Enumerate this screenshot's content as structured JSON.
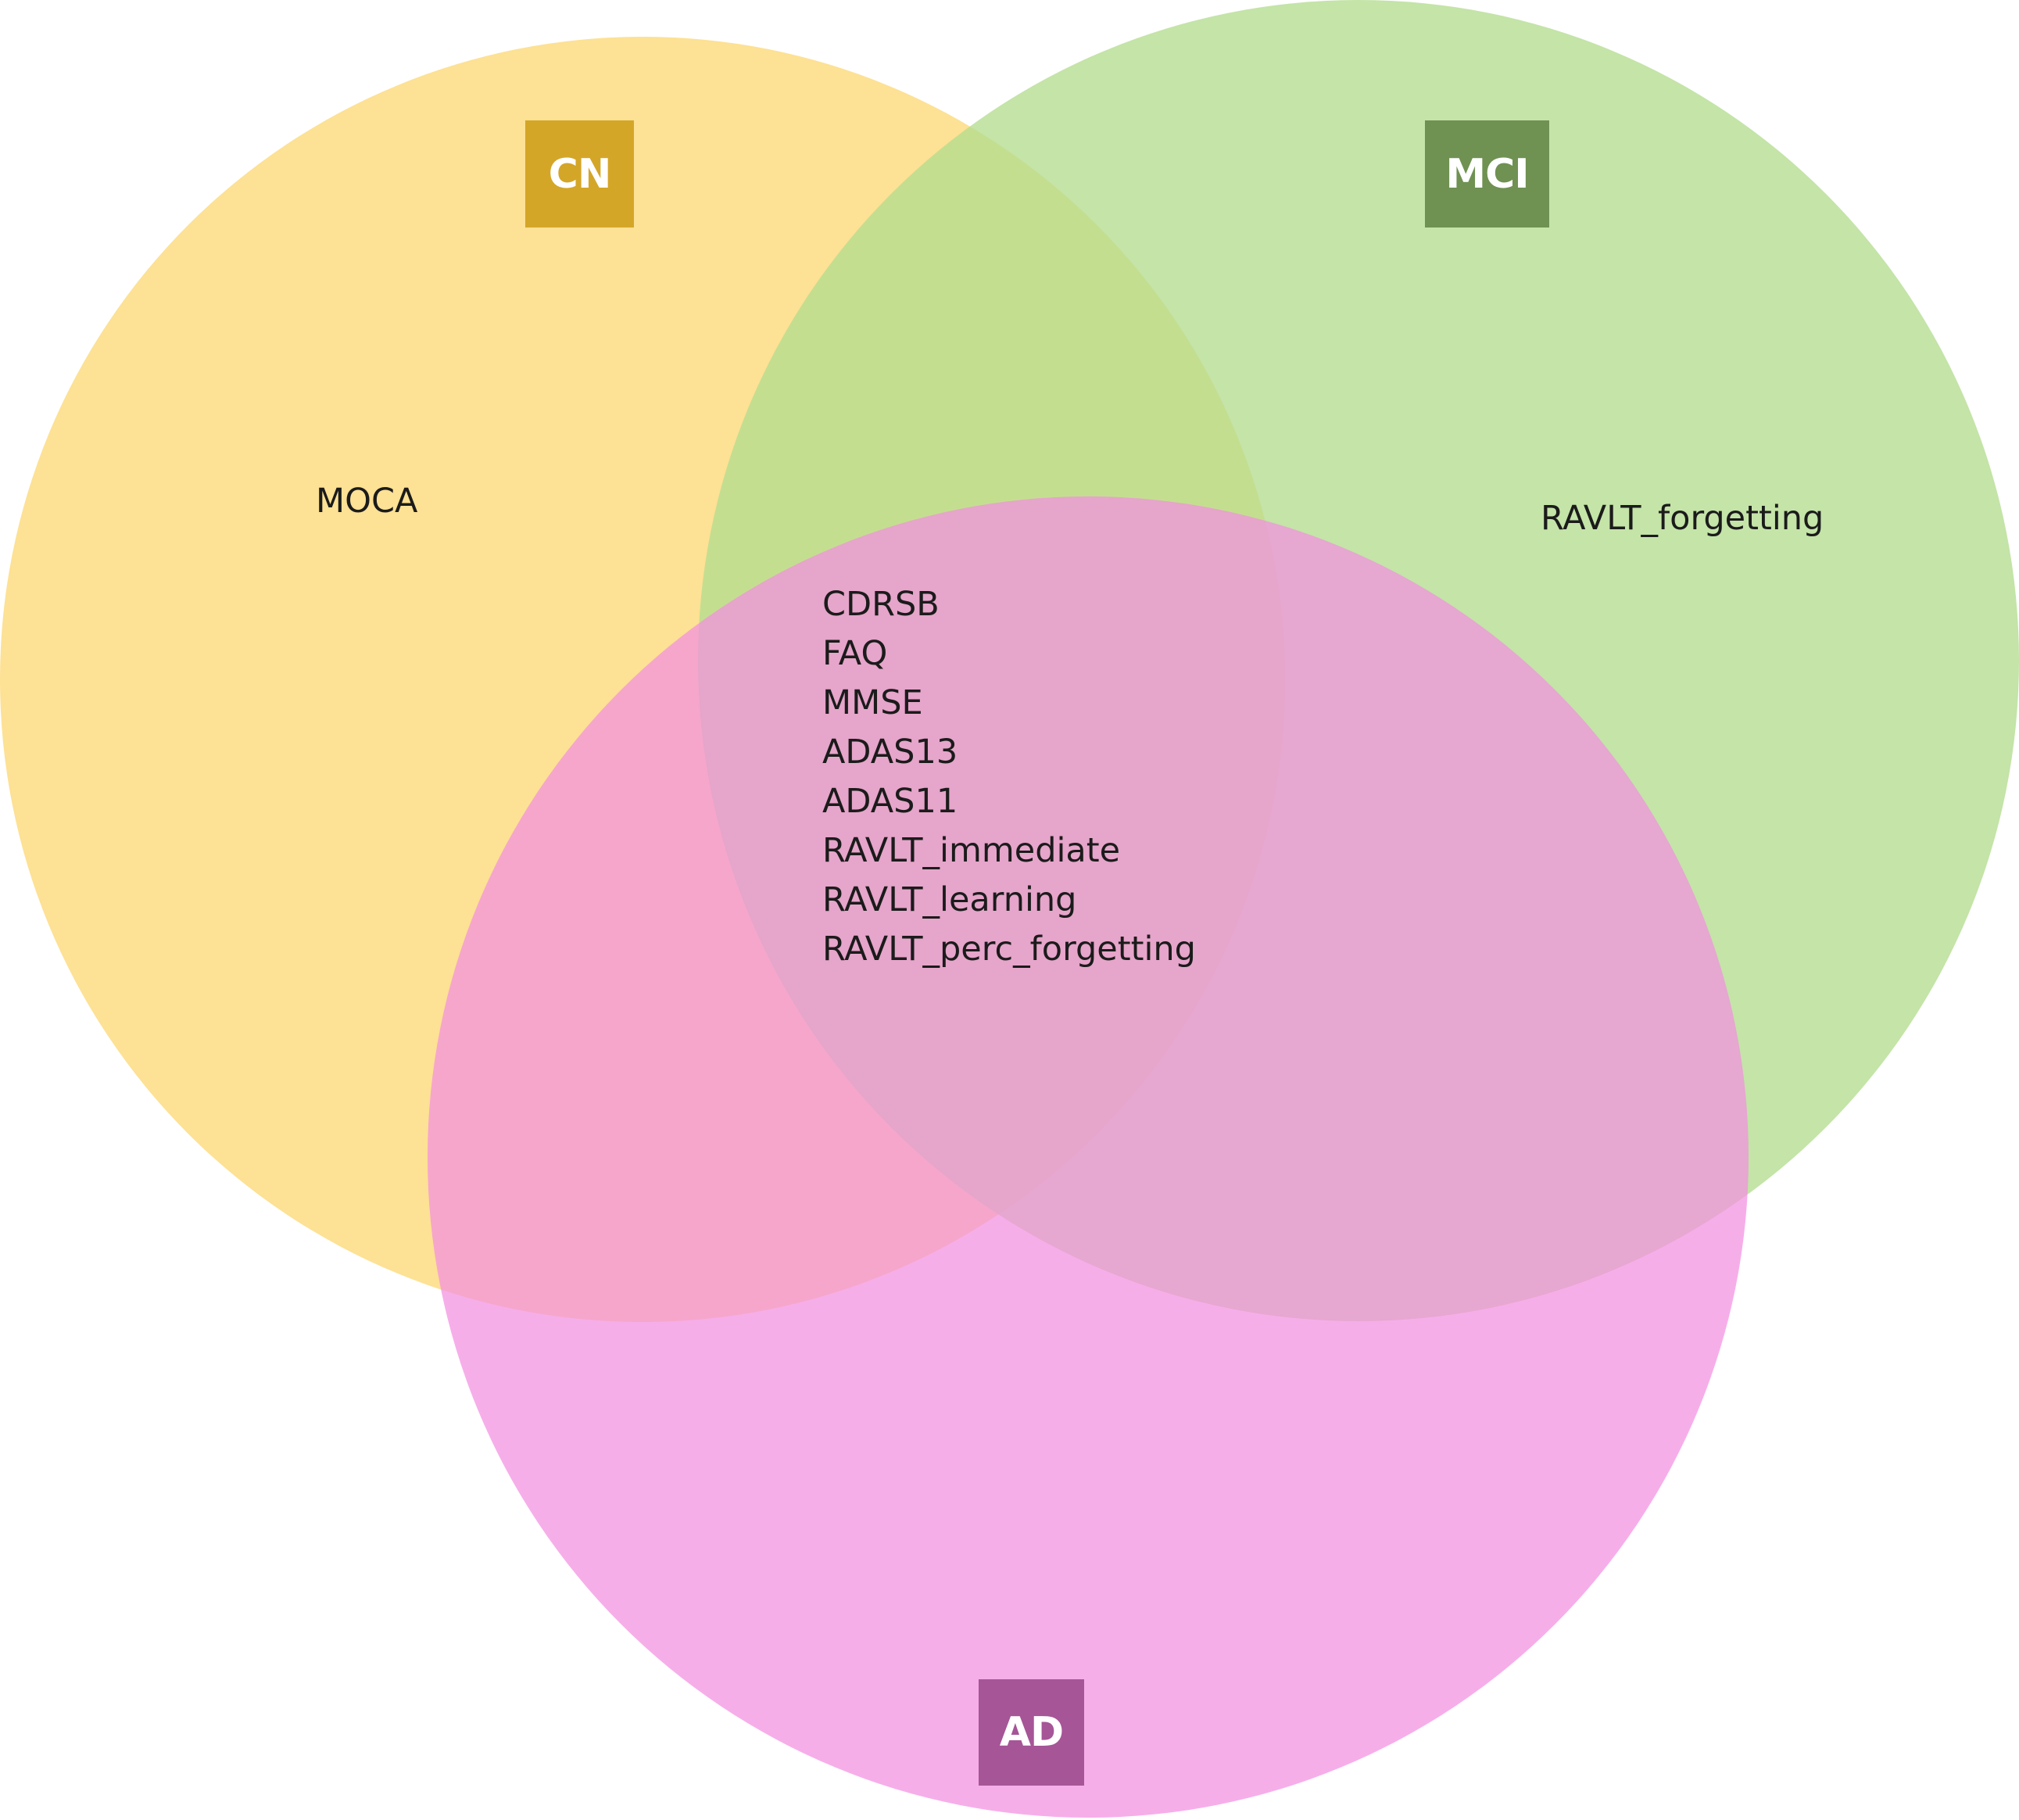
{
  "sets": [
    {
      "key": "cn",
      "label": "CN",
      "fill": "#fcd876",
      "label_bg": "#d4a628"
    },
    {
      "key": "mci",
      "label": "MCI",
      "fill": "#b4dc90",
      "label_bg": "#6f9152"
    },
    {
      "key": "ad",
      "label": "AD",
      "fill": "#f28fe0",
      "label_bg": "#a65597"
    }
  ],
  "regions": {
    "cn_only": [
      "MOCA"
    ],
    "mci_only": [
      "RAVLT_forgetting"
    ],
    "all_three": [
      "CDRSB",
      "FAQ",
      "MMSE",
      "ADAS13",
      "ADAS11",
      "RAVLT_immediate",
      "RAVLT_learning",
      "RAVLT_perc_forgetting"
    ]
  }
}
